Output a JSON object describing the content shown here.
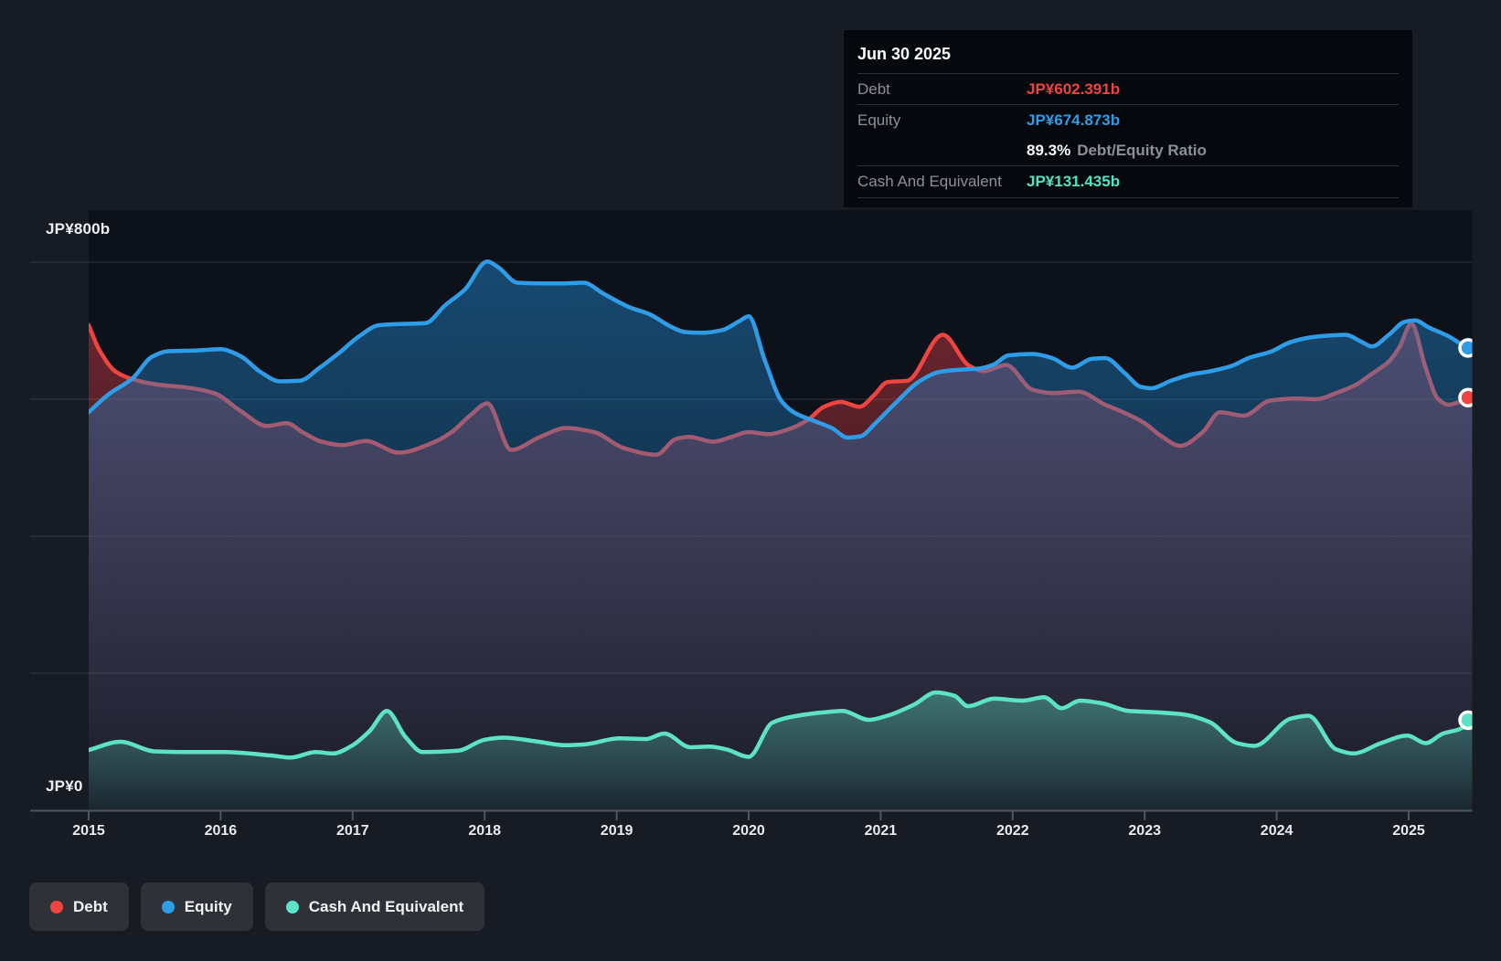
{
  "tooltip": {
    "date": "Jun 30 2025",
    "debt_label": "Debt",
    "debt_value": "JP¥602.391b",
    "equity_label": "Equity",
    "equity_value": "JP¥674.873b",
    "ratio_value": "89.3%",
    "ratio_label": "Debt/Equity Ratio",
    "cash_label": "Cash And Equivalent",
    "cash_value": "JP¥131.435b"
  },
  "y_axis": {
    "top_label": "JP¥800b",
    "bottom_label": "JP¥0"
  },
  "x_axis": {
    "years": [
      "2015",
      "2016",
      "2017",
      "2018",
      "2019",
      "2020",
      "2021",
      "2022",
      "2023",
      "2024",
      "2025"
    ]
  },
  "legend": [
    {
      "label": "Debt",
      "color": "#ee4540"
    },
    {
      "label": "Equity",
      "color": "#2f9ce8"
    },
    {
      "label": "Cash And Equivalent",
      "color": "#5ee2c6"
    }
  ],
  "colors": {
    "debt_line": "#ee4540",
    "equity_line": "#2f9ce8",
    "cash_line": "#5ee2c6",
    "debt_fill": "220,60,70",
    "equity_fill": "33,130,200",
    "cash_fill": "94,226,198",
    "tooltip_debt": "#ee4540",
    "tooltip_equity": "#2f9ce8",
    "tooltip_cash": "#4fe5c3"
  },
  "chart_data": {
    "type": "area",
    "title": "Debt to Equity history (JP¥ billions)",
    "x_unit": "decimal_year",
    "x_range": [
      2015.0,
      2025.5
    ],
    "ylim": [
      0,
      800
    ],
    "y_gridline_values": [
      0,
      200,
      400,
      600,
      800
    ],
    "legend_position": "bottom-left",
    "series": [
      {
        "name": "Debt",
        "points": [
          [
            2015.0,
            708
          ],
          [
            2015.08,
            672
          ],
          [
            2015.2,
            641
          ],
          [
            2015.32,
            630
          ],
          [
            2015.5,
            622
          ],
          [
            2015.75,
            617
          ],
          [
            2015.95,
            609
          ],
          [
            2016.15,
            583
          ],
          [
            2016.35,
            561
          ],
          [
            2016.5,
            565
          ],
          [
            2016.62,
            552
          ],
          [
            2016.75,
            539
          ],
          [
            2016.92,
            533
          ],
          [
            2017.1,
            539
          ],
          [
            2017.35,
            522
          ],
          [
            2017.6,
            536
          ],
          [
            2017.75,
            552
          ],
          [
            2017.9,
            578
          ],
          [
            2018.02,
            594
          ],
          [
            2018.2,
            526
          ],
          [
            2018.42,
            545
          ],
          [
            2018.62,
            558
          ],
          [
            2018.83,
            552
          ],
          [
            2019.05,
            529
          ],
          [
            2019.3,
            519
          ],
          [
            2019.45,
            542
          ],
          [
            2019.55,
            545
          ],
          [
            2019.73,
            538
          ],
          [
            2019.87,
            545
          ],
          [
            2020.0,
            552
          ],
          [
            2020.15,
            549
          ],
          [
            2020.3,
            556
          ],
          [
            2020.45,
            570
          ],
          [
            2020.57,
            589
          ],
          [
            2020.7,
            596
          ],
          [
            2020.84,
            589
          ],
          [
            2020.95,
            606
          ],
          [
            2021.05,
            625
          ],
          [
            2021.2,
            627
          ],
          [
            2021.47,
            694
          ],
          [
            2021.67,
            649
          ],
          [
            2021.78,
            641
          ],
          [
            2021.95,
            650
          ],
          [
            2022.15,
            614
          ],
          [
            2022.3,
            609
          ],
          [
            2022.5,
            611
          ],
          [
            2022.7,
            592
          ],
          [
            2022.85,
            580
          ],
          [
            2023.0,
            565
          ],
          [
            2023.12,
            547
          ],
          [
            2023.27,
            532
          ],
          [
            2023.44,
            552
          ],
          [
            2023.57,
            581
          ],
          [
            2023.75,
            576
          ],
          [
            2023.95,
            598
          ],
          [
            2024.15,
            601
          ],
          [
            2024.3,
            600
          ],
          [
            2024.45,
            609
          ],
          [
            2024.6,
            621
          ],
          [
            2024.72,
            637
          ],
          [
            2024.85,
            655
          ],
          [
            2024.93,
            676
          ],
          [
            2025.02,
            710
          ],
          [
            2025.13,
            645
          ],
          [
            2025.22,
            601
          ],
          [
            2025.3,
            592
          ],
          [
            2025.4,
            597
          ],
          [
            2025.5,
            602.4
          ]
        ]
      },
      {
        "name": "Equity",
        "points": [
          [
            2015.0,
            581
          ],
          [
            2015.15,
            607
          ],
          [
            2015.33,
            630
          ],
          [
            2015.48,
            662
          ],
          [
            2015.6,
            670
          ],
          [
            2015.8,
            671
          ],
          [
            2016.0,
            673
          ],
          [
            2016.15,
            663
          ],
          [
            2016.3,
            640
          ],
          [
            2016.45,
            626
          ],
          [
            2016.6,
            627
          ],
          [
            2016.75,
            646
          ],
          [
            2016.9,
            668
          ],
          [
            2017.05,
            692
          ],
          [
            2017.2,
            708
          ],
          [
            2017.4,
            710
          ],
          [
            2017.55,
            711
          ],
          [
            2017.7,
            737
          ],
          [
            2017.85,
            760
          ],
          [
            2018.02,
            801
          ],
          [
            2018.1,
            793
          ],
          [
            2018.25,
            770
          ],
          [
            2018.45,
            769
          ],
          [
            2018.6,
            769
          ],
          [
            2018.75,
            770
          ],
          [
            2018.9,
            754
          ],
          [
            2019.1,
            734
          ],
          [
            2019.25,
            724
          ],
          [
            2019.4,
            707
          ],
          [
            2019.52,
            698
          ],
          [
            2019.65,
            697
          ],
          [
            2019.8,
            701
          ],
          [
            2019.93,
            714
          ],
          [
            2020.0,
            721
          ],
          [
            2020.12,
            658
          ],
          [
            2020.25,
            597
          ],
          [
            2020.35,
            580
          ],
          [
            2020.5,
            568
          ],
          [
            2020.63,
            558
          ],
          [
            2020.75,
            544
          ],
          [
            2020.85,
            546
          ],
          [
            2020.95,
            563
          ],
          [
            2021.1,
            592
          ],
          [
            2021.3,
            627
          ],
          [
            2021.45,
            640
          ],
          [
            2021.6,
            643
          ],
          [
            2021.75,
            645
          ],
          [
            2021.85,
            650
          ],
          [
            2021.97,
            664
          ],
          [
            2022.15,
            666
          ],
          [
            2022.3,
            660
          ],
          [
            2022.45,
            646
          ],
          [
            2022.6,
            659
          ],
          [
            2022.7,
            660
          ],
          [
            2022.85,
            638
          ],
          [
            2022.97,
            618
          ],
          [
            2023.05,
            616
          ],
          [
            2023.2,
            627
          ],
          [
            2023.35,
            636
          ],
          [
            2023.5,
            641
          ],
          [
            2023.65,
            648
          ],
          [
            2023.8,
            661
          ],
          [
            2023.95,
            669
          ],
          [
            2024.1,
            683
          ],
          [
            2024.25,
            690
          ],
          [
            2024.4,
            693
          ],
          [
            2024.52,
            694
          ],
          [
            2024.65,
            683
          ],
          [
            2024.72,
            677
          ],
          [
            2024.85,
            694
          ],
          [
            2024.97,
            713
          ],
          [
            2025.05,
            715
          ],
          [
            2025.15,
            705
          ],
          [
            2025.3,
            692
          ],
          [
            2025.42,
            679
          ],
          [
            2025.5,
            674.9
          ]
        ]
      },
      {
        "name": "Cash And Equivalent",
        "points": [
          [
            2015.0,
            88
          ],
          [
            2015.24,
            100
          ],
          [
            2015.5,
            86
          ],
          [
            2015.77,
            85
          ],
          [
            2016.04,
            85
          ],
          [
            2016.38,
            80
          ],
          [
            2016.53,
            77
          ],
          [
            2016.72,
            85
          ],
          [
            2016.85,
            83
          ],
          [
            2017.0,
            95
          ],
          [
            2017.13,
            116
          ],
          [
            2017.26,
            145
          ],
          [
            2017.4,
            107
          ],
          [
            2017.53,
            85
          ],
          [
            2017.8,
            87
          ],
          [
            2018.0,
            103
          ],
          [
            2018.14,
            106
          ],
          [
            2018.41,
            100
          ],
          [
            2018.61,
            95
          ],
          [
            2018.75,
            96
          ],
          [
            2019.02,
            105
          ],
          [
            2019.22,
            104
          ],
          [
            2019.36,
            112
          ],
          [
            2019.56,
            92
          ],
          [
            2019.7,
            93
          ],
          [
            2019.83,
            89
          ],
          [
            2020.0,
            78
          ],
          [
            2020.18,
            128
          ],
          [
            2020.37,
            138
          ],
          [
            2020.57,
            143
          ],
          [
            2020.71,
            145
          ],
          [
            2020.91,
            132
          ],
          [
            2021.05,
            138
          ],
          [
            2021.25,
            154
          ],
          [
            2021.42,
            172
          ],
          [
            2021.56,
            167
          ],
          [
            2021.66,
            152
          ],
          [
            2021.86,
            163
          ],
          [
            2022.07,
            160
          ],
          [
            2022.24,
            165
          ],
          [
            2022.37,
            149
          ],
          [
            2022.51,
            160
          ],
          [
            2022.68,
            156
          ],
          [
            2022.88,
            145
          ],
          [
            2023.09,
            143
          ],
          [
            2023.29,
            140
          ],
          [
            2023.49,
            129
          ],
          [
            2023.7,
            98
          ],
          [
            2023.83,
            94
          ],
          [
            2024.11,
            134
          ],
          [
            2024.24,
            138
          ],
          [
            2024.45,
            89
          ],
          [
            2024.58,
            83
          ],
          [
            2024.79,
            98
          ],
          [
            2024.99,
            109
          ],
          [
            2025.13,
            98
          ],
          [
            2025.26,
            112
          ],
          [
            2025.38,
            118
          ],
          [
            2025.5,
            131.4
          ]
        ]
      }
    ],
    "end_markers": [
      {
        "series": "Debt",
        "x": 2025.5,
        "value": 602.391
      },
      {
        "series": "Equity",
        "x": 2025.5,
        "value": 674.873
      },
      {
        "series": "Cash And Equivalent",
        "x": 2025.5,
        "value": 131.435
      }
    ]
  }
}
